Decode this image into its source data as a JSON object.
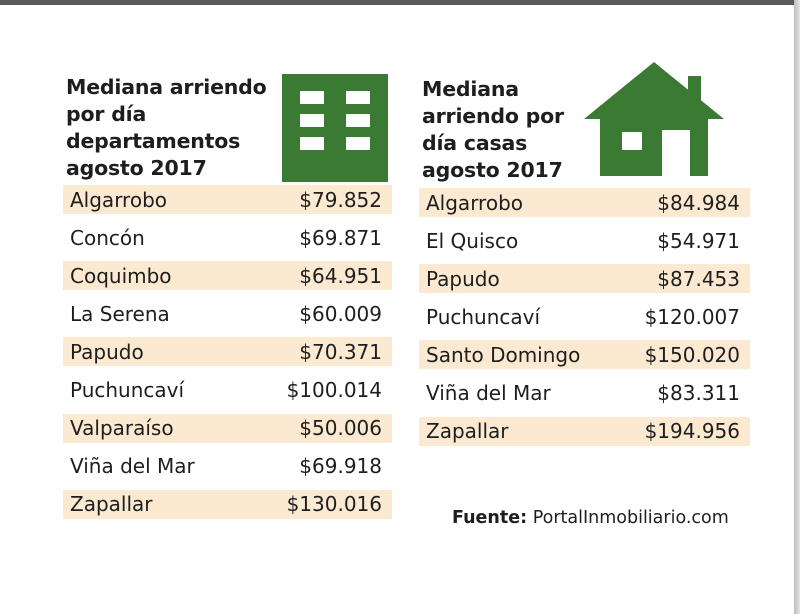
{
  "departamentos": {
    "title_lines": [
      "Mediana arriendo",
      "por día",
      "departamentos",
      "agosto 2017"
    ],
    "icon": "building-icon",
    "rows": [
      {
        "name": "Algarrobo",
        "value": "$79.852"
      },
      {
        "name": "Concón",
        "value": "$69.871"
      },
      {
        "name": "Coquimbo",
        "value": "$64.951"
      },
      {
        "name": "La Serena",
        "value": "$60.009"
      },
      {
        "name": "Papudo",
        "value": "$70.371"
      },
      {
        "name": "Puchuncaví",
        "value": "$100.014"
      },
      {
        "name": "Valparaíso",
        "value": "$50.006"
      },
      {
        "name": "Viña del Mar",
        "value": "$69.918"
      },
      {
        "name": "Zapallar",
        "value": "$130.016"
      }
    ]
  },
  "casas": {
    "title_lines": [
      "Mediana",
      "arriendo por",
      "día casas",
      "agosto 2017"
    ],
    "icon": "house-icon",
    "rows": [
      {
        "name": "Algarrobo",
        "value": "$84.984"
      },
      {
        "name": "El Quisco",
        "value": "$54.971"
      },
      {
        "name": "Papudo",
        "value": "$87.453"
      },
      {
        "name": "Puchuncaví",
        "value": "$120.007"
      },
      {
        "name": "Santo Domingo",
        "value": "$150.020"
      },
      {
        "name": "Viña del Mar",
        "value": "$83.311"
      },
      {
        "name": "Zapallar",
        "value": "$194.956"
      }
    ]
  },
  "source": {
    "label": "Fuente:",
    "text": "PortalInmobiliario.com"
  },
  "colors": {
    "icon_green": "#3b7a32",
    "row_shade": "#fbe9d1",
    "text": "#1e1e1e"
  }
}
